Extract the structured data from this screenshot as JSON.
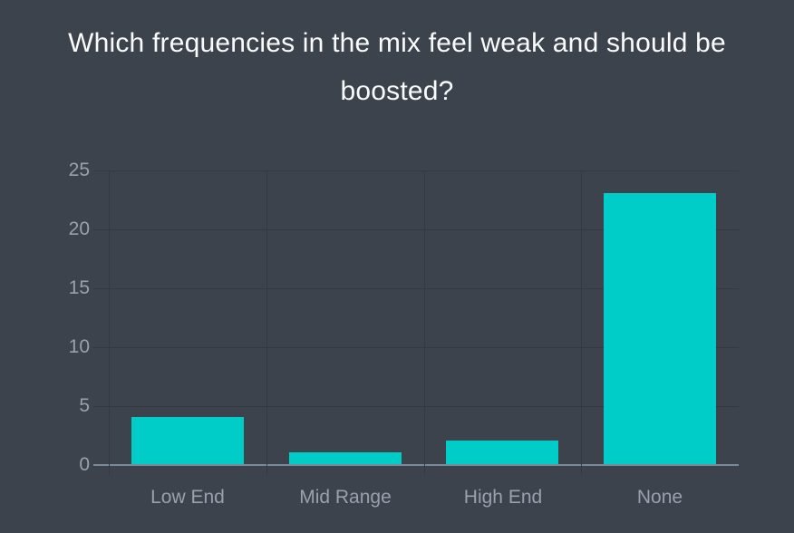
{
  "chart_data": {
    "type": "bar",
    "title": "Which frequencies in the mix feel weak and should be boosted?",
    "categories": [
      "Low End",
      "Mid Range",
      "High End",
      "None"
    ],
    "values": [
      4,
      1,
      2,
      23
    ],
    "xlabel": "",
    "ylabel": "",
    "ylim": [
      0,
      25
    ],
    "yticks": [
      0,
      5,
      10,
      15,
      20,
      25
    ],
    "grid": true,
    "legend": false,
    "bar_color": "#00cdc7",
    "background_color": "#3d434c",
    "grid_color": "#333a43",
    "axis_line_color": "#7b8897",
    "tick_label_color": "#98a1ad",
    "title_color": "#fafbfc"
  }
}
